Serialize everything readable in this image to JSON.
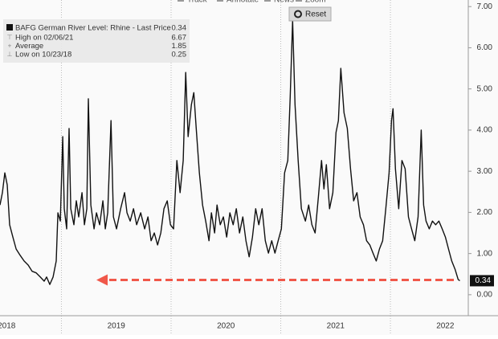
{
  "toolbar": {
    "items": [
      "Track",
      "Annotate",
      "News",
      "Zoom"
    ],
    "reset": "Reset"
  },
  "chart_data": {
    "type": "line",
    "series": [
      {
        "name": "BAFG German River Level: Rhine - Last Price",
        "color": "#111111",
        "x": [
          2018.44,
          2018.462,
          2018.484,
          2018.506,
          2018.528,
          2018.557,
          2018.587,
          2018.623,
          2018.66,
          2018.697,
          2018.733,
          2018.77,
          2018.807,
          2018.843,
          2018.865,
          2018.894,
          2018.924,
          2018.953,
          2018.968,
          2018.99,
          2019.012,
          2019.026,
          2019.048,
          2019.07,
          2019.085,
          2019.114,
          2019.136,
          2019.158,
          2019.188,
          2019.21,
          2019.232,
          2019.246,
          2019.268,
          2019.298,
          2019.32,
          2019.349,
          2019.378,
          2019.4,
          2019.422,
          2019.452,
          2019.474,
          2019.503,
          2019.54,
          2019.576,
          2019.598,
          2019.627,
          2019.657,
          2019.686,
          2019.723,
          2019.759,
          2019.789,
          2019.818,
          2019.847,
          2019.877,
          2019.906,
          2019.935,
          2019.965,
          2019.994,
          2020.023,
          2020.053,
          2020.082,
          2020.111,
          2020.133,
          2020.155,
          2020.185,
          2020.207,
          2020.229,
          2020.258,
          2020.287,
          2020.316,
          2020.346,
          2020.368,
          2020.397,
          2020.419,
          2020.448,
          2020.477,
          2020.507,
          2020.536,
          2020.566,
          2020.595,
          2020.624,
          2020.654,
          2020.683,
          2020.712,
          2020.742,
          2020.771,
          2020.8,
          2020.83,
          2020.859,
          2020.888,
          2020.918,
          2020.947,
          2020.976,
          2021.006,
          2021.035,
          2021.064,
          2021.086,
          2021.108,
          2021.13,
          2021.159,
          2021.188,
          2021.225,
          2021.255,
          2021.284,
          2021.313,
          2021.343,
          2021.372,
          2021.394,
          2021.416,
          2021.445,
          2021.475,
          2021.504,
          2021.526,
          2021.548,
          2021.577,
          2021.607,
          2021.636,
          2021.665,
          2021.695,
          2021.724,
          2021.754,
          2021.783,
          2021.812,
          2021.841,
          2021.871,
          2021.9,
          2021.929,
          2021.958,
          2021.988,
          2022.01,
          2022.024,
          2022.046,
          2022.076,
          2022.105,
          2022.134,
          2022.164,
          2022.193,
          2022.222,
          2022.252,
          2022.281,
          2022.303,
          2022.325,
          2022.354,
          2022.383,
          2022.413,
          2022.442,
          2022.472,
          2022.501,
          2022.53,
          2022.559,
          2022.589,
          2022.618,
          2022.633
        ],
        "values": [
          2.18,
          2.48,
          2.96,
          2.67,
          1.7,
          1.4,
          1.11,
          0.96,
          0.82,
          0.72,
          0.57,
          0.53,
          0.43,
          0.33,
          0.43,
          0.25,
          0.43,
          0.82,
          1.99,
          1.79,
          3.84,
          2.09,
          1.6,
          4.04,
          2.09,
          1.7,
          2.28,
          1.89,
          2.48,
          1.7,
          2.09,
          4.76,
          2.18,
          1.6,
          1.99,
          1.7,
          2.28,
          1.6,
          1.99,
          4.23,
          1.89,
          1.6,
          2.09,
          2.48,
          1.99,
          1.79,
          2.09,
          1.7,
          1.99,
          1.6,
          1.89,
          1.31,
          1.5,
          1.21,
          1.5,
          2.09,
          2.28,
          1.7,
          1.6,
          3.26,
          2.48,
          3.26,
          5.4,
          3.84,
          4.62,
          4.91,
          4.04,
          2.96,
          2.18,
          1.79,
          1.31,
          1.99,
          1.5,
          2.18,
          1.7,
          1.89,
          1.4,
          1.99,
          1.7,
          2.09,
          1.5,
          1.89,
          1.31,
          0.92,
          1.4,
          2.09,
          1.7,
          2.09,
          1.31,
          1.01,
          1.31,
          1.01,
          1.31,
          1.6,
          2.96,
          3.26,
          4.81,
          6.67,
          4.62,
          3.26,
          2.09,
          1.79,
          2.18,
          1.7,
          1.5,
          2.38,
          3.26,
          2.57,
          3.16,
          2.09,
          2.48,
          3.94,
          4.23,
          5.5,
          4.42,
          4.04,
          3.06,
          2.28,
          2.48,
          1.89,
          1.7,
          1.31,
          1.21,
          1.01,
          0.82,
          1.11,
          1.31,
          2.09,
          2.96,
          4.23,
          4.52,
          3.06,
          2.09,
          3.26,
          3.06,
          1.89,
          1.6,
          1.31,
          1.89,
          4.0,
          2.18,
          1.79,
          1.6,
          1.79,
          1.7,
          1.79,
          1.6,
          1.4,
          1.11,
          0.82,
          0.62,
          0.37,
          0.34
        ]
      }
    ],
    "last_price": 0.34,
    "legend_stats": [
      {
        "label": "High on 02/06/21",
        "value": 6.67
      },
      {
        "label": "Average",
        "value": 1.85
      },
      {
        "label": "Low on 10/23/18",
        "value": 0.25
      }
    ],
    "xlim": [
      2018.44,
      2022.71
    ],
    "xticks": [
      {
        "value": 2018.5,
        "label": "2018"
      },
      {
        "value": 2019.5,
        "label": "2019"
      },
      {
        "value": 2020.5,
        "label": "2020"
      },
      {
        "value": 2021.5,
        "label": "2021"
      },
      {
        "value": 2022.5,
        "label": "2022"
      }
    ],
    "xgrid": [
      2019,
      2020,
      2021,
      2022
    ],
    "ylim": [
      -0.51,
      7.16
    ],
    "yticks": [
      {
        "value": 0,
        "label": "0.00"
      },
      {
        "value": 1,
        "label": "1.00"
      },
      {
        "value": 2,
        "label": "2.00"
      },
      {
        "value": 3,
        "label": "3.00"
      },
      {
        "value": 4,
        "label": "4.00"
      },
      {
        "value": 5,
        "label": "5.00"
      },
      {
        "value": 6,
        "label": "6.00"
      },
      {
        "value": 7,
        "label": "7.00"
      }
    ]
  }
}
